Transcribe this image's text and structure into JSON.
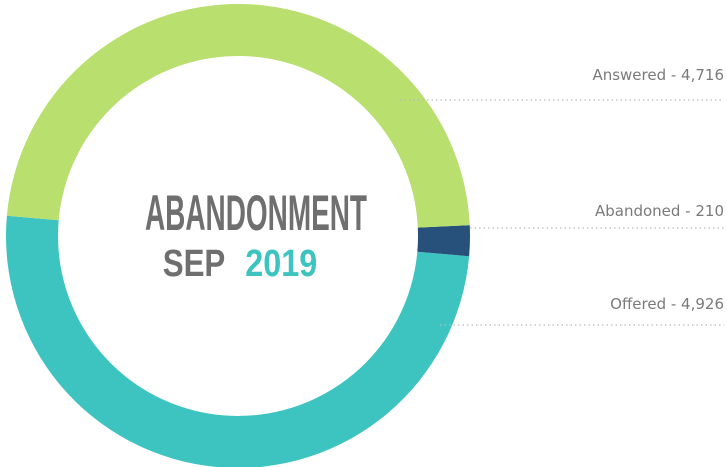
{
  "chart_data": {
    "type": "donut",
    "title": "ABANDONMENT",
    "subtitle": [
      "SEP",
      "2019"
    ],
    "values": [
      4716,
      210,
      4926
    ],
    "value_labels": [
      "Answered - 4,716",
      "Abandoned - 210",
      "Offered - 4,926"
    ],
    "colors": [
      "#b9df6f",
      "#27507a",
      "#3ec4c0"
    ]
  }
}
